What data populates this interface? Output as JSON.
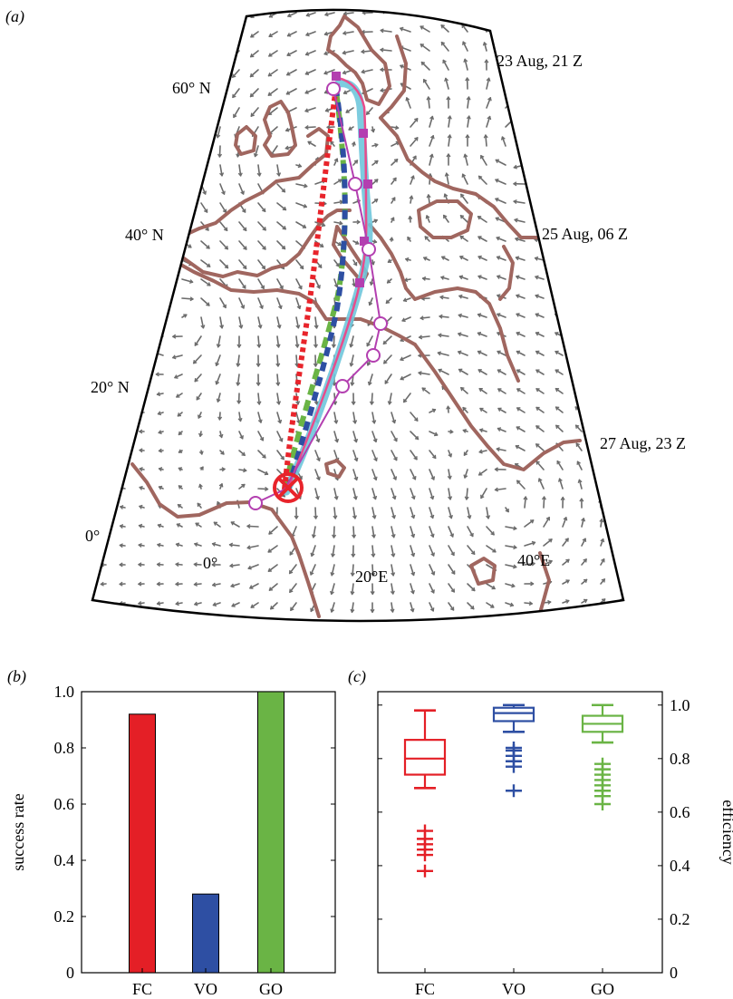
{
  "panel_a": {
    "label": "(a)",
    "lat_labels": [
      "60° N",
      "40° N",
      "20° N",
      "0°"
    ],
    "lon_labels": [
      "0°",
      "20°E",
      "40°E"
    ],
    "time_labels": [
      "23 Aug, 21 Z",
      "25 Aug, 06 Z",
      "27 Aug, 23 Z"
    ],
    "colors": {
      "coast": "#a0665f",
      "arrows": "#6b6b6b",
      "FC": "#e8242b",
      "VO": "#2e4fa3",
      "GO": "#6ab445",
      "actual_track": "#6fc6dc",
      "track_pink": "#e84c8b",
      "track_magenta": "#b33fb0",
      "release_marker": "#e8242b"
    }
  },
  "chart_data": [
    {
      "panel": "(b)",
      "type": "bar",
      "categories": [
        "FC",
        "VO",
        "GO"
      ],
      "values": [
        0.92,
        0.28,
        1.0
      ],
      "colors": [
        "#e41f26",
        "#2e4fa3",
        "#6ab445"
      ],
      "title": "",
      "xlabel": "",
      "ylabel": "success rate",
      "ylim": [
        0,
        1.0
      ],
      "yticks": [
        "0",
        "0.2",
        "0.4",
        "0.6",
        "0.8",
        "1.0"
      ],
      "grid": false
    },
    {
      "panel": "(c)",
      "type": "box",
      "categories": [
        "FC",
        "VO",
        "GO"
      ],
      "colors": [
        "#e41f26",
        "#2e4fa3",
        "#6ab445"
      ],
      "title": "",
      "xlabel": "",
      "ylabel": "efficiency",
      "ylim": [
        0,
        1.05
      ],
      "yticks": [
        "0",
        "0.2",
        "0.4",
        "0.6",
        "0.8",
        "1.0"
      ],
      "axis_side": "right",
      "grid": false,
      "boxes": [
        {
          "q1": 0.74,
          "median": 0.8,
          "q3": 0.87,
          "whisker_low": 0.69,
          "whisker_high": 0.98,
          "outliers": [
            0.38,
            0.44,
            0.46,
            0.48,
            0.5,
            0.53
          ]
        },
        {
          "q1": 0.94,
          "median": 0.97,
          "q3": 0.99,
          "whisker_low": 0.9,
          "whisker_high": 1.0,
          "outliers": [
            0.68,
            0.77,
            0.79,
            0.81,
            0.83,
            0.84
          ]
        },
        {
          "q1": 0.9,
          "median": 0.93,
          "q3": 0.96,
          "whisker_low": 0.86,
          "whisker_high": 1.0,
          "outliers": [
            0.63,
            0.66,
            0.68,
            0.7,
            0.72,
            0.74,
            0.76,
            0.78
          ]
        }
      ]
    }
  ]
}
